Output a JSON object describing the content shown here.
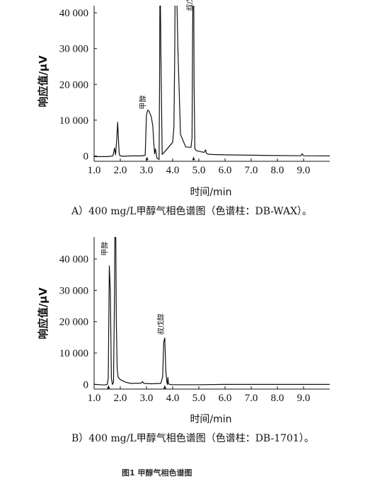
{
  "figure_caption": "图1 甲醇气相色谱图",
  "chart_data": [
    {
      "type": "line",
      "caption": "A）400 mg/L甲醇气相色谱图（色谱柱：DB-WAX）。",
      "xlabel": "时间/min",
      "ylabel": "响应值/μV",
      "xlim": [
        1.0,
        10.0
      ],
      "ylim": [
        -1500,
        42000
      ],
      "xticks": [
        "1.0",
        "2.0",
        "3.0",
        "4.0",
        "5.0",
        "6.0",
        "7.0",
        "8.0",
        "9.0"
      ],
      "yticks": [
        "0",
        "10 000",
        "20 000",
        "30 000",
        "40 000"
      ],
      "peak_labels": [
        {
          "text": "甲醇",
          "x": 3.02,
          "y": 13000
        },
        {
          "text": "叔戊醇",
          "x": 4.8,
          "y": 40500
        }
      ],
      "series": [
        {
          "x": [
            1.0,
            1.5,
            1.72,
            1.78,
            1.82,
            1.86,
            1.9,
            1.94,
            1.96,
            1.99,
            2.02,
            2.1,
            2.4,
            2.8,
            2.95,
            3.0,
            3.05,
            3.1,
            3.18,
            3.24,
            3.28,
            3.31,
            3.34,
            3.4,
            3.48,
            3.5,
            3.52,
            3.55,
            3.6,
            3.7,
            3.85,
            4.0,
            4.05,
            4.08,
            4.1,
            4.13,
            4.2,
            4.3,
            4.5,
            4.7,
            4.74,
            4.76,
            4.78,
            4.8,
            4.82,
            4.85,
            4.9,
            5.0,
            5.2,
            5.26,
            5.28,
            5.3,
            5.35,
            5.5,
            6.0,
            7.0,
            8.0,
            8.9,
            8.95,
            9.0,
            10.0
          ],
          "y": [
            -200,
            -200,
            0,
            2200,
            300,
            4000,
            9400,
            3000,
            600,
            0,
            0,
            -100,
            0,
            0,
            200,
            11500,
            12800,
            12500,
            11000,
            8500,
            3500,
            600,
            2000,
            -600,
            -1000,
            20000,
            55000,
            30000,
            400,
            1200,
            2500,
            3800,
            8000,
            30000,
            55000,
            55000,
            30000,
            6000,
            2500,
            2400,
            5000,
            30000,
            55000,
            55000,
            20000,
            2000,
            1500,
            1300,
            1000,
            1700,
            900,
            700,
            500,
            400,
            300,
            200,
            100,
            50,
            600,
            50,
            0
          ]
        }
      ]
    },
    {
      "type": "line",
      "caption": "B）400 mg/L甲醇气相色谱图（色谱柱：DB-1701）。",
      "xlabel": "时间/min",
      "ylabel": "响应值/μV",
      "xlim": [
        1.0,
        10.0
      ],
      "ylim": [
        -1500,
        47000
      ],
      "xticks": [
        "1.0",
        "2.0",
        "3.0",
        "4.0",
        "5.0",
        "6.0",
        "7.0",
        "8.0",
        "9.0"
      ],
      "yticks": [
        "0",
        "10 000",
        "20 000",
        "30 000",
        "40 000"
      ],
      "peak_labels": [
        {
          "text": "甲醇",
          "x": 1.55,
          "y": 41000
        },
        {
          "text": "叔戊醇",
          "x": 3.7,
          "y": 15800
        }
      ],
      "series": [
        {
          "x": [
            1.0,
            1.4,
            1.5,
            1.54,
            1.58,
            1.62,
            1.66,
            1.7,
            1.74,
            1.78,
            1.8,
            1.82,
            1.85,
            1.88,
            1.92,
            2.0,
            2.2,
            2.4,
            2.8,
            2.85,
            2.9,
            3.2,
            3.55,
            3.62,
            3.66,
            3.7,
            3.74,
            3.78,
            3.8,
            3.82,
            3.84,
            3.88,
            4.0,
            5.0,
            6.0,
            7.0,
            8.0,
            9.0,
            10.0
          ],
          "y": [
            0,
            -200,
            0,
            2000,
            37800,
            30000,
            2000,
            0,
            600,
            30000,
            60000,
            60000,
            20000,
            5000,
            2200,
            1500,
            700,
            300,
            400,
            900,
            300,
            200,
            300,
            2500,
            13500,
            14800,
            4000,
            600,
            0,
            2200,
            200,
            0,
            -100,
            -100,
            0,
            0,
            0,
            0,
            0
          ]
        }
      ]
    }
  ]
}
